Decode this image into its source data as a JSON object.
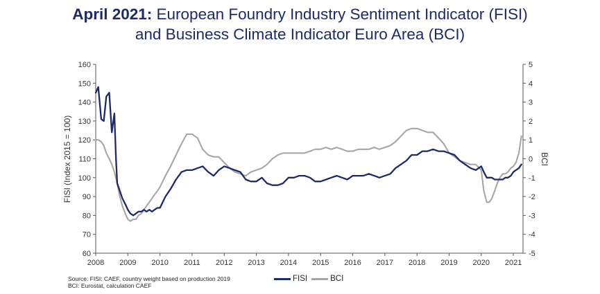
{
  "title": {
    "prefix": "April 2021:",
    "line1": "European Foundry Industry Sentiment Indicator (FISI)",
    "line2": "and Business Climate Indicator Euro Area (BCI)"
  },
  "footnote": {
    "line1": "Source: FISI: CAEF, country weight based on production 2019",
    "line2": "BCI: Eurostat, calculation CAEF"
  },
  "colors": {
    "fisi": "#1b2a6b",
    "bci": "#a6a6a6",
    "axis": "#555555"
  },
  "chart_data": {
    "type": "line",
    "title": "April 2021: European Foundry Industry Sentiment Indicator (FISI) and Business Climate Indicator Euro Area (BCI)",
    "xlabel": "",
    "ylabel": "FISI (Index 2015 = 100)",
    "y2label": "BCI",
    "xlim": [
      2008,
      2021.3
    ],
    "ylim": [
      60,
      160
    ],
    "y2lim": [
      -5,
      5
    ],
    "x_ticks": [
      "2008",
      "2009",
      "2010",
      "2011",
      "2012",
      "2013",
      "2014",
      "2015",
      "2016",
      "2017",
      "2018",
      "2019",
      "2020",
      "2021"
    ],
    "y_ticks": [
      "60",
      "70",
      "80",
      "90",
      "100",
      "110",
      "120",
      "130",
      "140",
      "150",
      "160"
    ],
    "y2_ticks": [
      "-5",
      "-4",
      "-3",
      "-2",
      "-1",
      "0",
      "1",
      "2",
      "3",
      "4",
      "5"
    ],
    "grid": false,
    "legend": "bottom-center",
    "series": [
      {
        "name": "FISI",
        "axis": "left",
        "x": [
          2008,
          2008.08,
          2008.17,
          2008.25,
          2008.33,
          2008.42,
          2008.5,
          2008.58,
          2008.63,
          2008.67,
          2008.75,
          2008.83,
          2008.92,
          2009,
          2009.08,
          2009.17,
          2009.25,
          2009.33,
          2009.42,
          2009.5,
          2009.58,
          2009.67,
          2009.75,
          2009.83,
          2009.92,
          2010,
          2010.17,
          2010.33,
          2010.5,
          2010.67,
          2010.83,
          2011,
          2011.17,
          2011.33,
          2011.5,
          2011.67,
          2011.83,
          2012,
          2012.17,
          2012.33,
          2012.5,
          2012.67,
          2012.83,
          2013,
          2013.17,
          2013.33,
          2013.5,
          2013.67,
          2013.83,
          2014,
          2014.17,
          2014.33,
          2014.5,
          2014.67,
          2014.83,
          2015,
          2015.17,
          2015.33,
          2015.5,
          2015.67,
          2015.83,
          2016,
          2016.17,
          2016.33,
          2016.5,
          2016.67,
          2016.83,
          2017,
          2017.17,
          2017.33,
          2017.5,
          2017.67,
          2017.83,
          2018,
          2018.17,
          2018.33,
          2018.5,
          2018.67,
          2018.83,
          2019,
          2019.17,
          2019.33,
          2019.5,
          2019.67,
          2019.83,
          2020,
          2020.08,
          2020.17,
          2020.25,
          2020.33,
          2020.42,
          2020.5,
          2020.58,
          2020.67,
          2020.75,
          2020.83,
          2020.92,
          2021,
          2021.08,
          2021.17,
          2021.25
        ],
        "values": [
          145,
          148,
          131,
          130,
          143,
          145,
          124,
          134,
          110,
          97,
          93,
          89,
          86,
          83,
          81,
          80,
          81,
          82,
          82,
          83,
          82,
          83,
          82,
          83,
          84,
          84,
          90,
          94,
          99,
          103,
          104,
          104,
          105,
          106,
          103,
          101,
          104,
          106,
          105,
          104,
          103,
          99,
          98,
          98,
          100,
          97,
          96,
          96,
          97,
          100,
          100,
          101,
          101,
          100,
          98,
          98,
          99,
          100,
          101,
          100,
          99,
          101,
          101,
          101,
          102,
          101,
          100,
          101,
          102,
          105,
          107,
          109,
          112,
          112,
          114,
          114,
          115,
          114,
          114,
          113,
          112,
          109,
          107,
          105,
          104,
          106,
          103,
          100,
          100,
          100,
          99,
          99,
          99,
          99,
          100,
          100,
          101,
          103,
          104,
          105,
          107
        ]
      },
      {
        "name": "BCI",
        "axis": "right",
        "x": [
          2008,
          2008.08,
          2008.17,
          2008.25,
          2008.33,
          2008.42,
          2008.5,
          2008.58,
          2008.67,
          2008.75,
          2008.83,
          2008.92,
          2009,
          2009.08,
          2009.17,
          2009.25,
          2009.33,
          2009.42,
          2009.5,
          2009.58,
          2009.67,
          2009.75,
          2009.83,
          2009.92,
          2010,
          2010.17,
          2010.33,
          2010.5,
          2010.67,
          2010.83,
          2011,
          2011.08,
          2011.17,
          2011.33,
          2011.5,
          2011.67,
          2011.83,
          2012,
          2012.17,
          2012.33,
          2012.5,
          2012.67,
          2012.83,
          2013,
          2013.17,
          2013.33,
          2013.5,
          2013.67,
          2013.83,
          2014,
          2014.17,
          2014.33,
          2014.5,
          2014.67,
          2014.83,
          2015,
          2015.17,
          2015.33,
          2015.5,
          2015.67,
          2015.83,
          2016,
          2016.17,
          2016.33,
          2016.5,
          2016.67,
          2016.83,
          2017,
          2017.17,
          2017.33,
          2017.5,
          2017.67,
          2017.83,
          2018,
          2018.17,
          2018.33,
          2018.5,
          2018.67,
          2018.83,
          2019,
          2019.17,
          2019.33,
          2019.5,
          2019.67,
          2019.83,
          2020,
          2020.08,
          2020.17,
          2020.25,
          2020.33,
          2020.42,
          2020.5,
          2020.58,
          2020.67,
          2020.75,
          2020.83,
          2020.92,
          2021,
          2021.08,
          2021.17,
          2021.25
        ],
        "values": [
          1,
          1,
          0.9,
          0.7,
          0.3,
          0,
          -0.3,
          -0.7,
          -1.3,
          -2,
          -2.5,
          -2.9,
          -3.2,
          -3.3,
          -3.2,
          -3.2,
          -3.0,
          -2.9,
          -2.7,
          -2.5,
          -2.3,
          -2.1,
          -1.9,
          -1.7,
          -1.5,
          -0.9,
          -0.4,
          0.2,
          0.8,
          1.3,
          1.3,
          1.2,
          1.1,
          0.5,
          0.2,
          0.1,
          0.1,
          -0.2,
          -0.5,
          -0.7,
          -0.8,
          -0.9,
          -0.7,
          -0.6,
          -0.5,
          -0.3,
          0,
          0.2,
          0.3,
          0.3,
          0.3,
          0.3,
          0.3,
          0.4,
          0.5,
          0.5,
          0.6,
          0.5,
          0.6,
          0.5,
          0.4,
          0.4,
          0.5,
          0.5,
          0.5,
          0.6,
          0.5,
          0.6,
          0.7,
          0.9,
          1.2,
          1.5,
          1.6,
          1.6,
          1.5,
          1.4,
          1.4,
          1.1,
          0.8,
          0.3,
          0.1,
          -0.1,
          -0.2,
          -0.3,
          -0.3,
          -0.6,
          -1.7,
          -2.3,
          -2.3,
          -2.1,
          -1.7,
          -1.3,
          -1.0,
          -0.8,
          -0.8,
          -0.7,
          -0.5,
          -0.4,
          -0.2,
          0.3,
          1.2
        ]
      }
    ]
  }
}
